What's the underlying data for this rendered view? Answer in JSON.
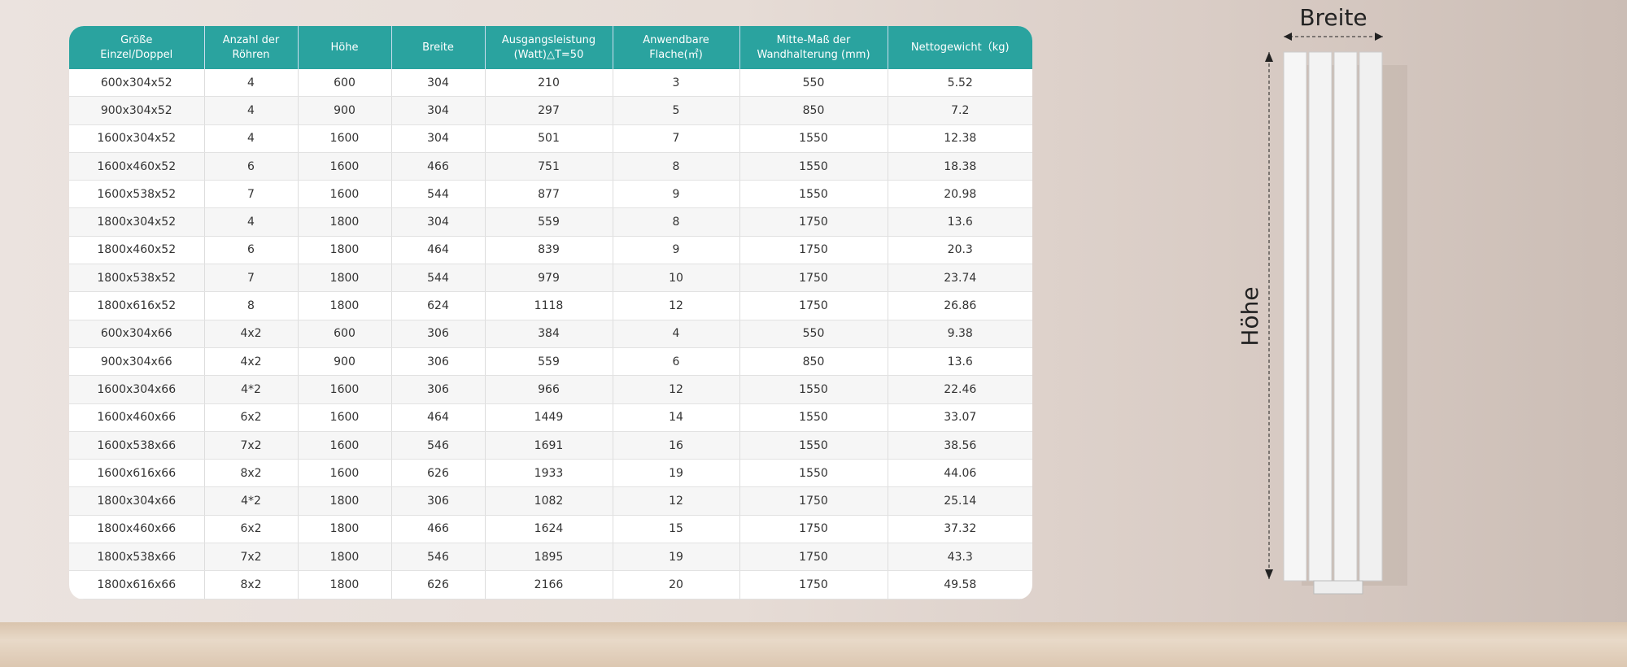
{
  "table": {
    "header": [
      "Größe\nEinzel/Doppel",
      "Anzahl der\nRöhren",
      "Höhe",
      "Breite",
      "Ausgangsleistung\n(Watt)△T=50",
      "Anwendbare\nFlache(㎡)",
      "Mitte-Maß der\nWandhalterung (mm)",
      "Nettogewicht（kg)"
    ],
    "rows": [
      [
        "600x304x52",
        "4",
        "600",
        "304",
        "210",
        "3",
        "550",
        "5.52"
      ],
      [
        "900x304x52",
        "4",
        "900",
        "304",
        "297",
        "5",
        "850",
        "7.2"
      ],
      [
        "1600x304x52",
        "4",
        "1600",
        "304",
        "501",
        "7",
        "1550",
        "12.38"
      ],
      [
        "1600x460x52",
        "6",
        "1600",
        "466",
        "751",
        "8",
        "1550",
        "18.38"
      ],
      [
        "1600x538x52",
        "7",
        "1600",
        "544",
        "877",
        "9",
        "1550",
        "20.98"
      ],
      [
        "1800x304x52",
        "4",
        "1800",
        "304",
        "559",
        "8",
        "1750",
        "13.6"
      ],
      [
        "1800x460x52",
        "6",
        "1800",
        "464",
        "839",
        "9",
        "1750",
        "20.3"
      ],
      [
        "1800x538x52",
        "7",
        "1800",
        "544",
        "979",
        "10",
        "1750",
        "23.74"
      ],
      [
        "1800x616x52",
        "8",
        "1800",
        "624",
        "1118",
        "12",
        "1750",
        "26.86"
      ],
      [
        "600x304x66",
        "4x2",
        "600",
        "306",
        "384",
        "4",
        "550",
        "9.38"
      ],
      [
        "900x304x66",
        "4x2",
        "900",
        "306",
        "559",
        "6",
        "850",
        "13.6"
      ],
      [
        "1600x304x66",
        "4*2",
        "1600",
        "306",
        "966",
        "12",
        "1550",
        "22.46"
      ],
      [
        "1600x460x66",
        "6x2",
        "1600",
        "464",
        "1449",
        "14",
        "1550",
        "33.07"
      ],
      [
        "1600x538x66",
        "7x2",
        "1600",
        "546",
        "1691",
        "16",
        "1550",
        "38.56"
      ],
      [
        "1600x616x66",
        "8x2",
        "1600",
        "626",
        "1933",
        "19",
        "1550",
        "44.06"
      ],
      [
        "1800x304x66",
        "4*2",
        "1800",
        "306",
        "1082",
        "12",
        "1750",
        "25.14"
      ],
      [
        "1800x460x66",
        "6x2",
        "1800",
        "466",
        "1624",
        "15",
        "1750",
        "37.32"
      ],
      [
        "1800x538x66",
        "7x2",
        "1800",
        "546",
        "1895",
        "19",
        "1750",
        "43.3"
      ],
      [
        "1800x616x66",
        "8x2",
        "1800",
        "626",
        "2166",
        "20",
        "1750",
        "49.58"
      ]
    ]
  },
  "labels": {
    "breite": "Breite",
    "hoehe": "Höhe"
  }
}
